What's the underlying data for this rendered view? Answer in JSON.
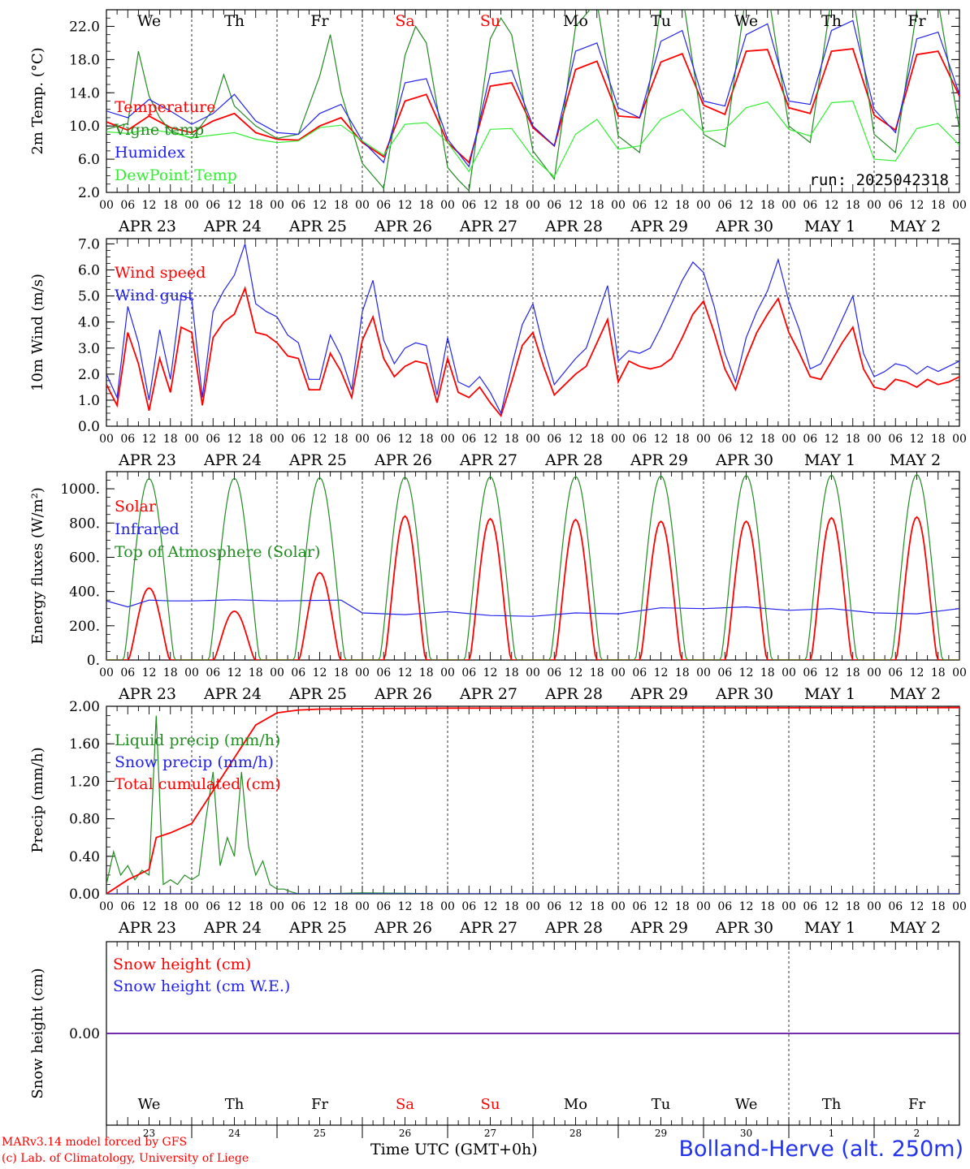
{
  "run_label": "run: 2025042318",
  "footer": {
    "model": "MARv3.14 model forced by GFS",
    "lab": "(c) Lab. of Climatology, University of Liege",
    "time_label": "Time UTC (GMT+0h)",
    "station": "Bolland-Herve (alt. 250m)"
  },
  "days": {
    "weekday_labels": [
      "We",
      "Th",
      "Fr",
      "Sa",
      "Su",
      "Mo",
      "Tu",
      "We",
      "Th",
      "Fr"
    ],
    "weekend_flags": [
      false,
      false,
      false,
      true,
      true,
      false,
      false,
      false,
      false,
      false
    ],
    "date_labels": [
      "APR 23",
      "APR 24",
      "APR 25",
      "APR 26",
      "APR 27",
      "APR 28",
      "APR 29",
      "APR 30",
      "MAY  1",
      "MAY  2"
    ],
    "day_numbers": [
      "23",
      "24",
      "25",
      "26",
      "27",
      "28",
      "29",
      "30",
      "1",
      "2"
    ],
    "hour_ticks": [
      "00",
      "06",
      "12",
      "18"
    ],
    "final_hour_tick": "00"
  },
  "colors": {
    "red": "#ff0000",
    "green": "#228b22",
    "blue": "#2222ee",
    "lightgreen": "#33ee33",
    "axis": "#000000"
  },
  "chart_data": [
    {
      "type": "line",
      "ylabel": "2m Temp. (°C)",
      "ylim": [
        2,
        24
      ],
      "yticks": [
        "2.0",
        "6.0",
        "10.0",
        "14.0",
        "18.0",
        "22.0"
      ],
      "x_unit": "hours since 2025-04-23 00:00 UTC",
      "legend": [
        "Temperature",
        "Vigne temp",
        "Humidex",
        "DewPoint Temp"
      ],
      "series": [
        {
          "name": "Temperature",
          "color": "red",
          "x": [
            0,
            6,
            12,
            18,
            24,
            30,
            36,
            42,
            48,
            54,
            60,
            66,
            72,
            78,
            84,
            90,
            96,
            102,
            108,
            114,
            120,
            126,
            132,
            138,
            144,
            150,
            156,
            162,
            168,
            174,
            180,
            186,
            192,
            198,
            204,
            210,
            216,
            222,
            228,
            234,
            240
          ],
          "y": [
            10.5,
            9.5,
            11.2,
            9.8,
            9.2,
            10.6,
            11.5,
            9.2,
            8.4,
            8.3,
            10.0,
            11.0,
            8.0,
            6.3,
            13.0,
            13.8,
            8.0,
            5.6,
            14.8,
            15.2,
            9.8,
            7.6,
            16.8,
            17.8,
            11.2,
            11.0,
            17.7,
            18.7,
            12.5,
            11.4,
            19.0,
            19.2,
            12.2,
            11.5,
            19.0,
            19.3,
            11.3,
            9.5,
            18.6,
            19.0,
            13.6
          ]
        },
        {
          "name": "Vigne temp",
          "color": "green",
          "x": [
            0,
            6,
            9,
            12,
            15,
            18,
            24,
            30,
            33,
            36,
            42,
            48,
            54,
            60,
            63,
            66,
            72,
            75,
            78,
            84,
            87,
            90,
            96,
            99,
            102,
            108,
            111,
            114,
            120,
            126,
            132,
            138,
            144,
            150,
            156,
            162,
            168,
            174,
            180,
            186,
            192,
            198,
            204,
            210,
            216,
            222,
            228,
            234,
            240
          ],
          "y": [
            9.6,
            10.3,
            19.0,
            13.6,
            11.0,
            9.4,
            8.5,
            12.0,
            16.2,
            12.4,
            10.0,
            8.5,
            9.0,
            16.0,
            21.0,
            14.0,
            5.5,
            4.0,
            2.5,
            18.5,
            22.0,
            20.0,
            5.0,
            3.5,
            2.2,
            20.5,
            23.0,
            21.0,
            7.0,
            3.6,
            22.0,
            25.0,
            8.8,
            6.8,
            24.5,
            26.0,
            9.0,
            7.5,
            26.0,
            26.5,
            10.0,
            8.0,
            25.5,
            26.0,
            9.0,
            6.8,
            24.0,
            25.0,
            9.6
          ]
        },
        {
          "name": "Humidex",
          "color": "blue",
          "x": [
            0,
            6,
            12,
            18,
            24,
            30,
            36,
            42,
            48,
            54,
            60,
            66,
            72,
            78,
            84,
            90,
            96,
            102,
            108,
            114,
            120,
            126,
            132,
            138,
            144,
            150,
            156,
            162,
            168,
            174,
            180,
            186,
            192,
            198,
            204,
            210,
            216,
            222,
            228,
            234,
            240
          ],
          "y": [
            11.8,
            11.0,
            13.2,
            11.8,
            10.2,
            11.5,
            13.8,
            10.6,
            9.2,
            9.0,
            11.5,
            12.6,
            8.2,
            5.6,
            15.2,
            15.7,
            8.4,
            5.1,
            16.3,
            16.7,
            10.0,
            7.6,
            19.0,
            20.0,
            12.2,
            11.0,
            20.2,
            21.5,
            13.0,
            12.4,
            21.0,
            22.3,
            13.0,
            12.6,
            21.5,
            22.7,
            12.0,
            9.2,
            20.5,
            21.3,
            13.8
          ]
        },
        {
          "name": "DewPoint Temp",
          "color": "lightgreen",
          "x": [
            0,
            6,
            12,
            18,
            24,
            30,
            36,
            42,
            48,
            54,
            60,
            66,
            72,
            78,
            84,
            90,
            96,
            102,
            108,
            114,
            120,
            126,
            132,
            138,
            144,
            150,
            156,
            162,
            168,
            174,
            180,
            186,
            192,
            198,
            204,
            210,
            216,
            222,
            228,
            234,
            240
          ],
          "y": [
            9.3,
            9.1,
            9.6,
            9.2,
            8.6,
            8.9,
            9.2,
            8.4,
            8.0,
            8.2,
            9.8,
            10.1,
            8.2,
            6.5,
            10.2,
            10.4,
            8.0,
            4.5,
            9.6,
            9.7,
            6.2,
            3.9,
            9.0,
            10.8,
            7.2,
            7.6,
            10.8,
            12.0,
            9.3,
            9.6,
            12.2,
            12.9,
            9.6,
            8.8,
            12.8,
            13.0,
            6.0,
            5.8,
            9.7,
            10.3,
            7.7
          ]
        }
      ]
    },
    {
      "type": "line",
      "ylabel": "10m Wind (m/s)",
      "ylim": [
        0,
        7.2
      ],
      "yticks": [
        "0.0",
        "1.0",
        "2.0",
        "3.0",
        "4.0",
        "5.0",
        "6.0",
        "7.0"
      ],
      "reference_line": 5.0,
      "x_unit": "hours since 2025-04-23 00:00 UTC",
      "legend": [
        "Wind speed",
        "Wind gust"
      ],
      "series": [
        {
          "name": "Wind speed",
          "color": "red",
          "x": [
            0,
            3,
            6,
            9,
            12,
            15,
            18,
            21,
            24,
            27,
            30,
            33,
            36,
            39,
            42,
            45,
            48,
            51,
            54,
            57,
            60,
            63,
            66,
            69,
            72,
            75,
            78,
            81,
            84,
            87,
            90,
            93,
            96,
            99,
            102,
            105,
            108,
            111,
            114,
            117,
            120,
            123,
            126,
            129,
            132,
            135,
            138,
            141,
            144,
            147,
            150,
            153,
            156,
            159,
            162,
            165,
            168,
            171,
            174,
            177,
            180,
            183,
            186,
            189,
            192,
            195,
            198,
            201,
            204,
            207,
            210,
            213,
            216,
            219,
            222,
            225,
            228,
            231,
            234,
            237,
            240
          ],
          "y": [
            1.6,
            0.8,
            3.6,
            2.4,
            0.6,
            2.6,
            1.3,
            3.8,
            3.6,
            0.8,
            3.4,
            4.0,
            4.3,
            5.3,
            3.6,
            3.5,
            3.2,
            2.7,
            2.6,
            1.4,
            1.4,
            2.8,
            2.1,
            1.1,
            3.3,
            4.2,
            2.6,
            1.9,
            2.3,
            2.5,
            2.4,
            0.9,
            2.6,
            1.3,
            1.1,
            1.5,
            0.9,
            0.4,
            1.7,
            3.1,
            3.6,
            2.3,
            1.2,
            1.6,
            2.0,
            2.3,
            3.2,
            4.1,
            1.7,
            2.5,
            2.3,
            2.2,
            2.3,
            2.6,
            3.4,
            4.3,
            4.8,
            3.6,
            2.2,
            1.4,
            2.6,
            3.6,
            4.3,
            4.9,
            3.6,
            2.8,
            1.9,
            1.8,
            2.5,
            3.2,
            3.8,
            2.2,
            1.5,
            1.4,
            1.8,
            1.7,
            1.5,
            1.8,
            1.6,
            1.7,
            1.9
          ]
        },
        {
          "name": "Wind gust",
          "color": "blue",
          "x": [
            0,
            3,
            6,
            9,
            12,
            15,
            18,
            21,
            24,
            27,
            30,
            33,
            36,
            39,
            42,
            45,
            48,
            51,
            54,
            57,
            60,
            63,
            66,
            69,
            72,
            75,
            78,
            81,
            84,
            87,
            90,
            93,
            96,
            99,
            102,
            105,
            108,
            111,
            114,
            117,
            120,
            123,
            126,
            129,
            132,
            135,
            138,
            141,
            144,
            147,
            150,
            153,
            156,
            159,
            162,
            165,
            168,
            171,
            174,
            177,
            180,
            183,
            186,
            189,
            192,
            195,
            198,
            201,
            204,
            207,
            210,
            213,
            216,
            219,
            222,
            225,
            228,
            231,
            234,
            237,
            240
          ],
          "y": [
            2.0,
            1.1,
            4.6,
            3.2,
            1.0,
            3.7,
            1.8,
            5.0,
            4.9,
            1.1,
            4.4,
            5.2,
            5.8,
            7.0,
            4.7,
            4.4,
            4.2,
            3.5,
            3.2,
            1.8,
            1.8,
            3.5,
            2.7,
            1.4,
            4.4,
            5.6,
            3.3,
            2.4,
            3.0,
            3.2,
            3.1,
            1.2,
            3.4,
            1.7,
            1.5,
            1.9,
            1.3,
            0.5,
            2.3,
            3.9,
            4.7,
            3.0,
            1.6,
            2.1,
            2.6,
            3.0,
            4.2,
            5.4,
            2.5,
            2.9,
            2.8,
            3.0,
            3.8,
            4.7,
            5.6,
            6.3,
            5.9,
            4.6,
            2.8,
            1.7,
            3.4,
            4.4,
            5.2,
            6.4,
            4.8,
            3.7,
            2.2,
            2.4,
            3.2,
            4.1,
            5.0,
            2.8,
            1.9,
            2.1,
            2.4,
            2.3,
            2.0,
            2.3,
            2.1,
            2.3,
            2.5
          ]
        }
      ]
    },
    {
      "type": "line",
      "ylabel": "Energy fluxes (W/m²)",
      "ylim": [
        0,
        1100
      ],
      "yticks": [
        "0.",
        "200.",
        "400.",
        "600.",
        "800.",
        "1000."
      ],
      "x_unit": "hours since 2025-04-23 00:00 UTC",
      "legend": [
        "Solar",
        "Infrared",
        "Top of Atmosphere (Solar)"
      ],
      "solar_peaks": [
        420,
        285,
        510,
        840,
        825,
        820,
        810,
        810,
        830,
        835
      ],
      "toa_peaks": [
        1060,
        1062,
        1065,
        1068,
        1070,
        1072,
        1075,
        1078,
        1080,
        1083
      ],
      "series": [
        {
          "name": "Solar",
          "color": "red",
          "derived_from": "solar_peaks"
        },
        {
          "name": "Infrared",
          "color": "blue",
          "x": [
            0,
            6,
            12,
            18,
            24,
            36,
            48,
            66,
            72,
            84,
            96,
            108,
            120,
            132,
            144,
            156,
            168,
            180,
            192,
            204,
            216,
            228,
            240
          ],
          "y": [
            345,
            310,
            350,
            345,
            345,
            352,
            345,
            350,
            275,
            265,
            282,
            260,
            255,
            275,
            270,
            305,
            300,
            310,
            290,
            300,
            275,
            270,
            300
          ]
        },
        {
          "name": "Top of Atmosphere (Solar)",
          "color": "green",
          "derived_from": "toa_peaks"
        }
      ]
    },
    {
      "type": "line",
      "ylabel": "Precip (mm/h)",
      "ylim": [
        0,
        2.0
      ],
      "yticks": [
        "0.00",
        "0.40",
        "0.80",
        "1.20",
        "1.60",
        "2.00"
      ],
      "x_unit": "hours since 2025-04-23 00:00 UTC",
      "legend": [
        "Liquid precip (mm/h)",
        "Snow precip (mm/h)",
        "Total cumulated (cm)"
      ],
      "series": [
        {
          "name": "Liquid precip (mm/h)",
          "color": "green",
          "x": [
            0,
            2,
            4,
            6,
            8,
            10,
            12,
            14,
            16,
            18,
            20,
            22,
            24,
            26,
            28,
            30,
            32,
            34,
            36,
            38,
            40,
            42,
            44,
            46,
            48,
            50,
            52,
            54,
            60,
            72,
            96,
            240
          ],
          "y": [
            0.1,
            0.45,
            0.2,
            0.3,
            0.15,
            0.25,
            0.2,
            1.9,
            0.1,
            0.15,
            0.1,
            0.2,
            0.15,
            0.2,
            0.8,
            1.3,
            0.3,
            0.6,
            0.4,
            1.3,
            0.5,
            0.2,
            0.35,
            0.1,
            0.05,
            0.05,
            0.02,
            0.0,
            0.0,
            0.01,
            0.0,
            0.0
          ]
        },
        {
          "name": "Snow precip (mm/h)",
          "color": "blue",
          "x": [
            0,
            240
          ],
          "y": [
            0,
            0
          ]
        },
        {
          "name": "Total cumulated (cm)",
          "color": "red",
          "x": [
            0,
            6,
            12,
            14,
            18,
            24,
            30,
            36,
            42,
            48,
            54,
            60,
            72,
            96,
            240
          ],
          "y": [
            0.0,
            0.15,
            0.26,
            0.6,
            0.65,
            0.75,
            1.1,
            1.45,
            1.8,
            1.93,
            1.96,
            1.97,
            1.975,
            1.98,
            1.985
          ]
        }
      ]
    },
    {
      "type": "line",
      "ylabel": "Snow height (cm)",
      "ylim": [
        -1,
        1
      ],
      "yticks": [
        "0.00"
      ],
      "x_unit": "hours since 2025-04-23 00:00 UTC",
      "legend": [
        "Snow height (cm)",
        "Snow height (cm W.E.)"
      ],
      "series": [
        {
          "name": "Snow height (cm)",
          "color": "red",
          "x": [
            0,
            240
          ],
          "y": [
            0,
            0
          ]
        },
        {
          "name": "Snow height (cm W.E.)",
          "color": "blue",
          "x": [
            0,
            240
          ],
          "y": [
            0,
            0
          ]
        }
      ]
    }
  ]
}
